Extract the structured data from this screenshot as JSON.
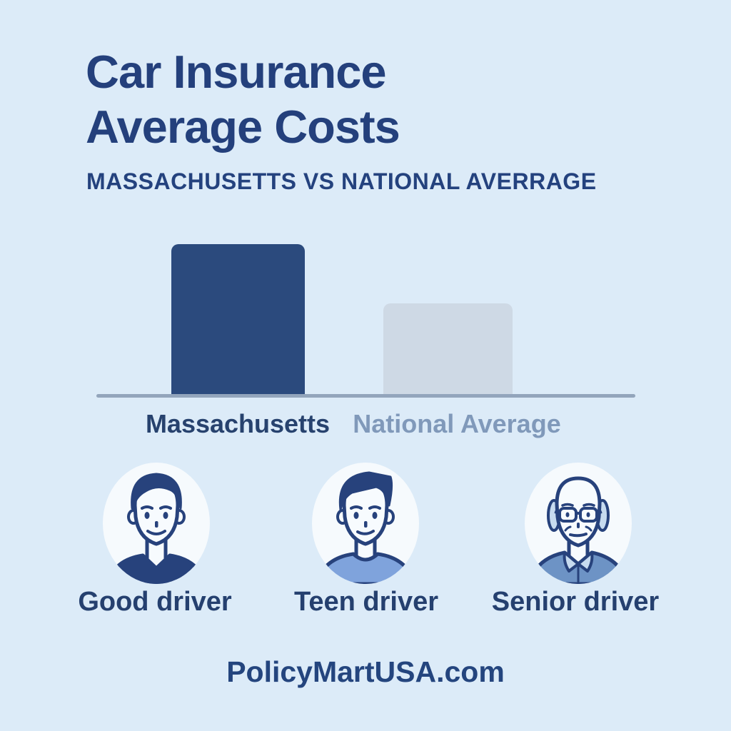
{
  "page": {
    "background_color": "#DCEBF8",
    "title_line1": "Car Insurance",
    "title_line2": "Average Costs",
    "subtitle": "MASSACHUSETTS VS NATIONAL AVERRAGE",
    "footer_url": "PolicyMartUSA.com"
  },
  "colors": {
    "title_text": "#24407C",
    "bar_massachusetts": "#2B4A7D",
    "bar_national_average": "#CED9E5",
    "axis_line": "#93A5BC",
    "massachusetts_label": "#27426E",
    "national_average_label": "#8099BA",
    "avatar_circle_bg": "#F6FAFD",
    "avatar_line": "#27427C",
    "good_driver_shirt": "#27427C",
    "teen_driver_shirt": "#7FA3DC",
    "senior_driver_shirt": "#6D93C5"
  },
  "chart_data": {
    "type": "bar",
    "title": "Car Insurance Average Costs",
    "subtitle": "Massachusetts vs National Averrage",
    "categories": [
      "Massachusetts",
      "National Average"
    ],
    "values": [
      100,
      61
    ],
    "value_note": "no numeric axis or data labels shown; values are relative bar heights (Massachusetts approx. 1.6x the national average)",
    "xlabel": "",
    "ylabel": "",
    "grid": false,
    "legend": false,
    "bar_colors": [
      "#2B4A7D",
      "#CED9E5"
    ]
  },
  "drivers": [
    {
      "label": "Good driver",
      "icon": "young-man-avatar"
    },
    {
      "label": "Teen driver",
      "icon": "teen-boy-avatar"
    },
    {
      "label": "Senior driver",
      "icon": "elderly-man-glasses-avatar"
    }
  ]
}
